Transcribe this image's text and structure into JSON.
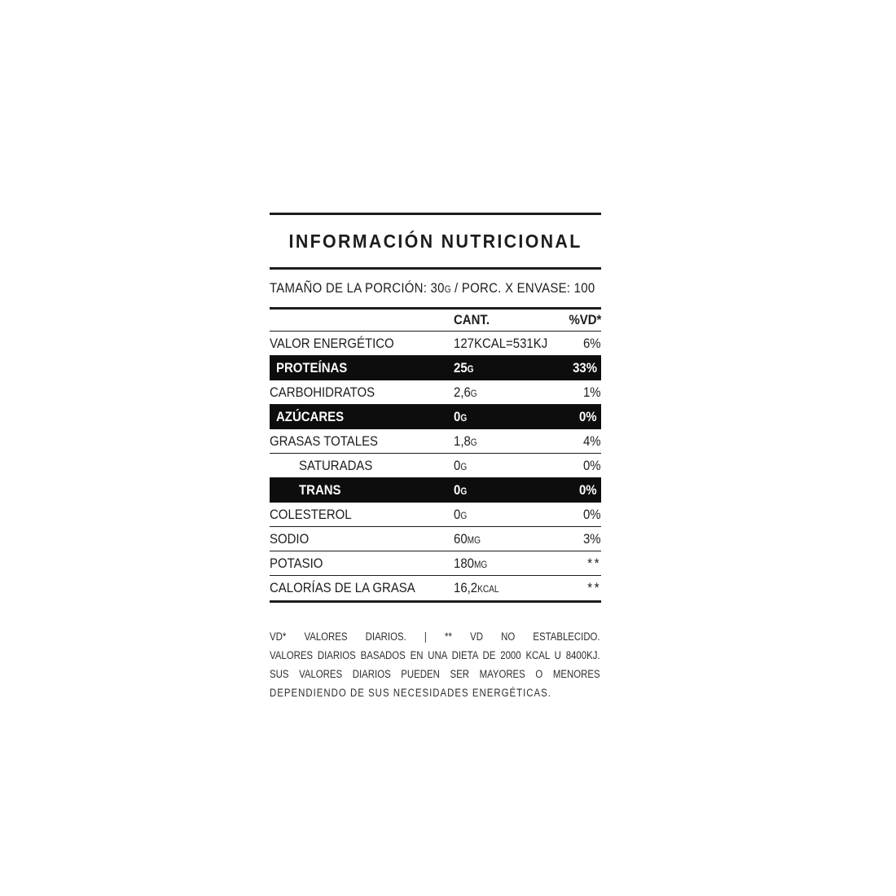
{
  "label": {
    "title": "INFORMACIÓN NUTRICIONAL",
    "serving": {
      "pre": "TAMAÑO DE LA PORCIÓN: 30",
      "unit": "G",
      "post": " / PORC. X ENVASE: 100"
    },
    "columns": {
      "amount": "CANT.",
      "dv": "%VD*"
    },
    "rows": [
      {
        "name": "VALOR ENERGÉTICO",
        "value": "127KCAL=531KJ",
        "unit": "",
        "dv": "6%",
        "highlight": false,
        "indent": false
      },
      {
        "name": "PROTEÍNAS",
        "value": "25",
        "unit": "G",
        "dv": "33%",
        "highlight": true,
        "indent": false
      },
      {
        "name": "CARBOHIDRATOS",
        "value": "2,6",
        "unit": "G",
        "dv": "1%",
        "highlight": false,
        "indent": false
      },
      {
        "name": "AZÚCARES",
        "value": "0",
        "unit": "G",
        "dv": "0%",
        "highlight": true,
        "indent": false
      },
      {
        "name": "GRASAS TOTALES",
        "value": "1,8",
        "unit": "G",
        "dv": "4%",
        "highlight": false,
        "indent": false
      },
      {
        "name": "SATURADAS",
        "value": "0",
        "unit": "G",
        "dv": "0%",
        "highlight": false,
        "indent": true
      },
      {
        "name": "TRANS",
        "value": "0",
        "unit": "G",
        "dv": "0%",
        "highlight": true,
        "indent": true
      },
      {
        "name": "COLESTEROL",
        "value": "0",
        "unit": "G",
        "dv": "0%",
        "highlight": false,
        "indent": false
      },
      {
        "name": "SODIO",
        "value": "60",
        "unit": "MG",
        "dv": "3%",
        "highlight": false,
        "indent": false
      },
      {
        "name": "POTASIO",
        "value": "180",
        "unit": "MG",
        "dv": "**",
        "highlight": false,
        "indent": false
      },
      {
        "name": "CALORÍAS DE LA GRASA",
        "value": "16,2",
        "unit": "KCAL",
        "dv": "**",
        "highlight": false,
        "indent": false
      }
    ],
    "footnote_lines": [
      "VD* VALORES DIARIOS. | ** VD NO ESTABLECIDO.",
      "VALORES DIARIOS BASADOS EN UNA DIETA DE 2000 KCAL U 8400KJ.",
      "SUS VALORES DIARIOS PUEDEN SER MAYORES O MENORES",
      "DEPENDIENDO DE SUS NECESIDADES ENERGÉTICAS."
    ],
    "colors": {
      "ink": "#1d1d1b",
      "highlight_bg": "#0d0d0d",
      "highlight_text": "#ffffff",
      "background": "#ffffff"
    }
  }
}
